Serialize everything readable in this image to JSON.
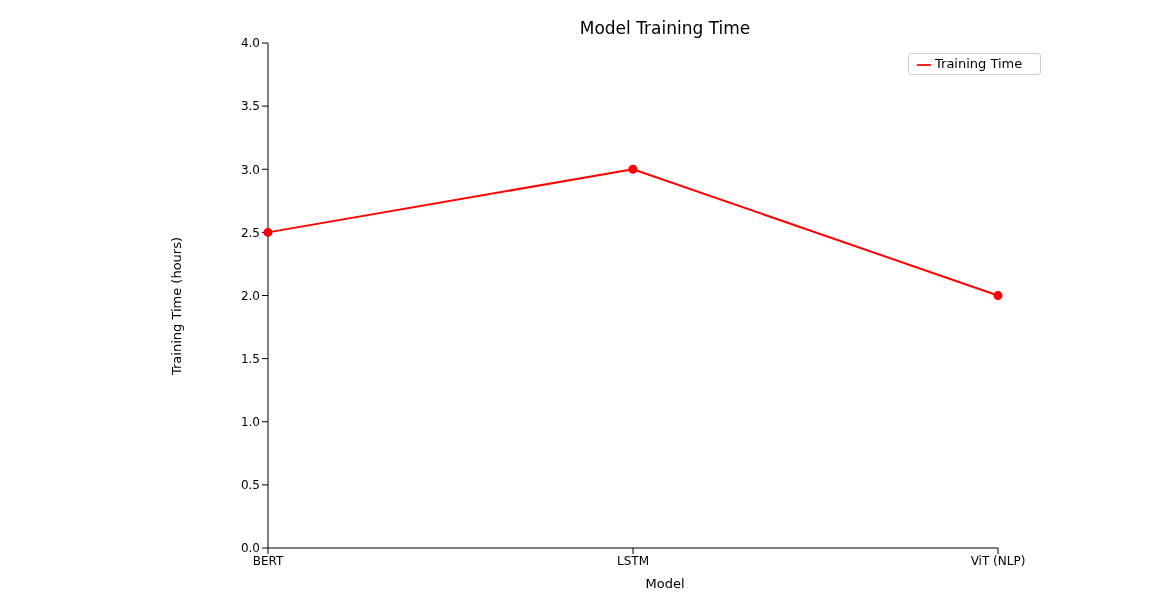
{
  "chart_data": {
    "type": "line",
    "title": "Model Training Time",
    "xlabel": "Model",
    "ylabel": "Training Time (hours)",
    "categories": [
      "BERT",
      "LSTM",
      "ViT (NLP)"
    ],
    "series": [
      {
        "name": "Training Time",
        "color": "#ff0000",
        "values": [
          2.5,
          3.0,
          2.0
        ]
      }
    ],
    "ylim": [
      0,
      4
    ],
    "yticks": [
      {
        "value": 0,
        "label": "0.0"
      },
      {
        "value": 0.5,
        "label": "0.5"
      },
      {
        "value": 1,
        "label": "1.0"
      },
      {
        "value": 1.5,
        "label": "1.5"
      },
      {
        "value": 2,
        "label": "2.0"
      },
      {
        "value": 2.5,
        "label": "2.5"
      },
      {
        "value": 3,
        "label": "3.0"
      },
      {
        "value": 3.5,
        "label": "3.5"
      },
      {
        "value": 4,
        "label": "4.0"
      }
    ],
    "grid": false,
    "legend": "top right",
    "marker": "circle",
    "line_style": "solid"
  }
}
